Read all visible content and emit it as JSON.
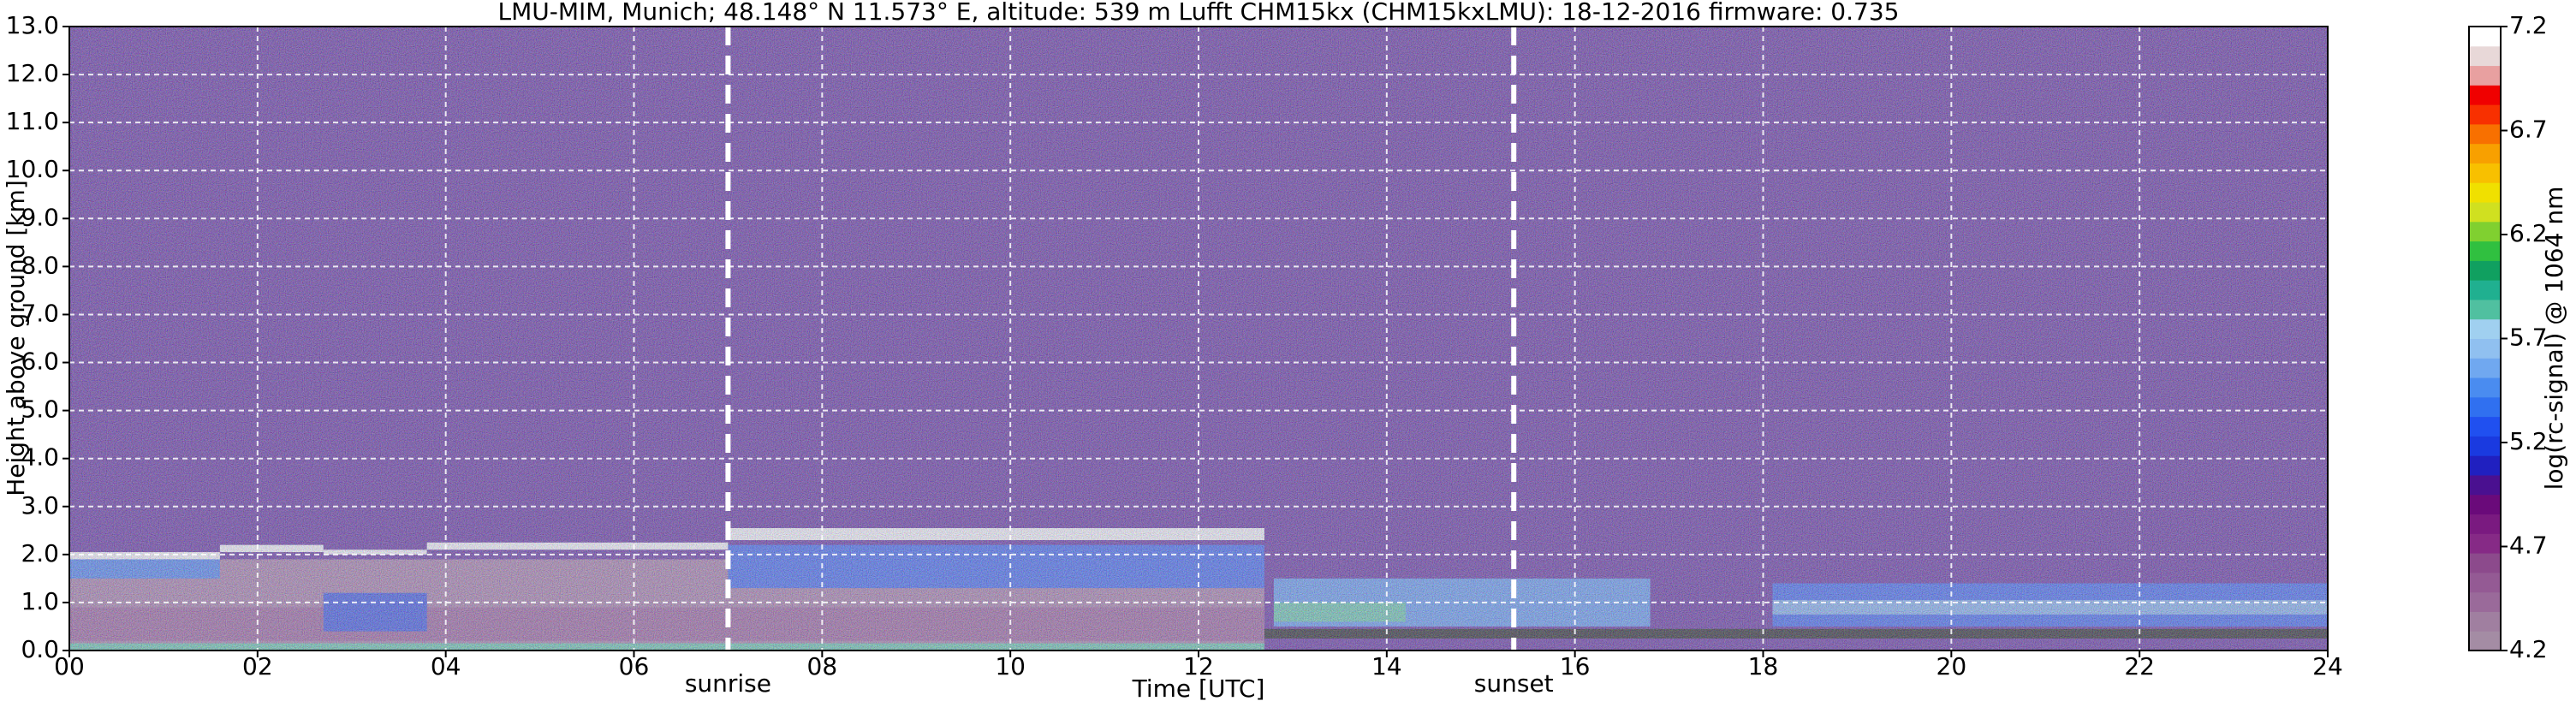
{
  "chart_data": {
    "type": "heatmap",
    "title": "LMU-MIM, Munich; 48.148° N 11.573° E, altitude: 539 m    Lufft CHM15kx (CHM15kxLMU): 18-12-2016    firmware: 0.735",
    "x_label": "Time [UTC]",
    "y_label": "Height above ground [km]",
    "colorbar_label": "log(rc-signal) @ 1064 nm",
    "xlim": [
      0,
      24
    ],
    "xticks": [
      {
        "value": 0,
        "label": "00"
      },
      {
        "value": 2,
        "label": "02"
      },
      {
        "value": 4,
        "label": "04"
      },
      {
        "value": 6,
        "label": "06"
      },
      {
        "value": 8,
        "label": "08"
      },
      {
        "value": 10,
        "label": "10"
      },
      {
        "value": 12,
        "label": "12"
      },
      {
        "value": 14,
        "label": "14"
      },
      {
        "value": 16,
        "label": "16"
      },
      {
        "value": 18,
        "label": "18"
      },
      {
        "value": 20,
        "label": "20"
      },
      {
        "value": 22,
        "label": "22"
      },
      {
        "value": 24,
        "label": "24"
      }
    ],
    "ylim": [
      0,
      13
    ],
    "yticks": [
      {
        "value": 0,
        "label": "0.0"
      },
      {
        "value": 1,
        "label": "1.0"
      },
      {
        "value": 2,
        "label": "2.0"
      },
      {
        "value": 3,
        "label": "3.0"
      },
      {
        "value": 4,
        "label": "4.0"
      },
      {
        "value": 5,
        "label": "5.0"
      },
      {
        "value": 6,
        "label": "6.0"
      },
      {
        "value": 7,
        "label": "7.0"
      },
      {
        "value": 8,
        "label": "8.0"
      },
      {
        "value": 9,
        "label": "9.0"
      },
      {
        "value": 10,
        "label": "10.0"
      },
      {
        "value": 11,
        "label": "11.0"
      },
      {
        "value": 12,
        "label": "12.0"
      },
      {
        "value": 13,
        "label": "13.0"
      }
    ],
    "zlim": [
      4.2,
      7.2
    ],
    "zticks": [
      4.2,
      4.7,
      5.2,
      5.7,
      6.2,
      6.7,
      7.2
    ],
    "colors": [
      "#a48ca4",
      "#a07fa0",
      "#9a6a9a",
      "#945a94",
      "#8c4a8c",
      "#862a86",
      "#7a1a80",
      "#6a0a7a",
      "#4a1090",
      "#2020c0",
      "#1a3ae0",
      "#2050f0",
      "#3070f0",
      "#4a8cf0",
      "#70a8f0",
      "#90c0f0",
      "#a0d0f0",
      "#50c0a0",
      "#20b090",
      "#10a060",
      "#30c040",
      "#80d030",
      "#d0e020",
      "#f0e000",
      "#f8c000",
      "#f8a000",
      "#f87000",
      "#f83000",
      "#f00000",
      "#e8a0a0",
      "#e8d8d8",
      "#ffffff"
    ],
    "grid": true,
    "regions": [
      {
        "x": [
          0,
          24
        ],
        "y": [
          0,
          13
        ],
        "value": 4.95
      },
      {
        "x": [
          0,
          12.7
        ],
        "y": [
          0,
          1.9
        ],
        "value": 4.45
      },
      {
        "x": [
          0,
          12.7
        ],
        "y": [
          0.2,
          0.9
        ],
        "value": 4.6
      },
      {
        "x": [
          0,
          12.7
        ],
        "y": [
          0,
          0.15
        ],
        "value": 5.8
      },
      {
        "x": [
          0,
          1.6
        ],
        "y": [
          1.5,
          1.9
        ],
        "value": 5.4
      },
      {
        "x": [
          0,
          1.6
        ],
        "y": [
          1.9,
          2.05
        ],
        "value": 7.2
      },
      {
        "x": [
          1.6,
          2.7
        ],
        "y": [
          2.05,
          2.2
        ],
        "value": 7.2
      },
      {
        "x": [
          2.7,
          3.8
        ],
        "y": [
          0.4,
          1.2
        ],
        "value": 5.2
      },
      {
        "x": [
          2.7,
          3.8
        ],
        "y": [
          2.0,
          2.1
        ],
        "value": 7.2
      },
      {
        "x": [
          3.8,
          7.0
        ],
        "y": [
          2.1,
          2.25
        ],
        "value": 7.2
      },
      {
        "x": [
          7.0,
          12.7
        ],
        "y": [
          2.3,
          2.55
        ],
        "value": 7.2
      },
      {
        "x": [
          7.0,
          12.7
        ],
        "y": [
          1.3,
          2.2
        ],
        "value": 5.3
      },
      {
        "x": [
          12.8,
          16.8
        ],
        "y": [
          0.5,
          1.5
        ],
        "value": 5.5
      },
      {
        "x": [
          12.8,
          14.2
        ],
        "y": [
          0.6,
          1.0
        ],
        "value": 5.8
      },
      {
        "x": [
          12.7,
          24
        ],
        "y": [
          0.25,
          0.45
        ],
        "value": 4.0
      },
      {
        "x": [
          18.1,
          24
        ],
        "y": [
          0.5,
          1.4
        ],
        "value": 5.3
      },
      {
        "x": [
          18.1,
          24
        ],
        "y": [
          0.75,
          1.05
        ],
        "value": 5.6
      }
    ],
    "vlines": [
      {
        "x": 7.0,
        "label": "sunrise"
      },
      {
        "x": 15.35,
        "label": "sunset"
      }
    ]
  }
}
